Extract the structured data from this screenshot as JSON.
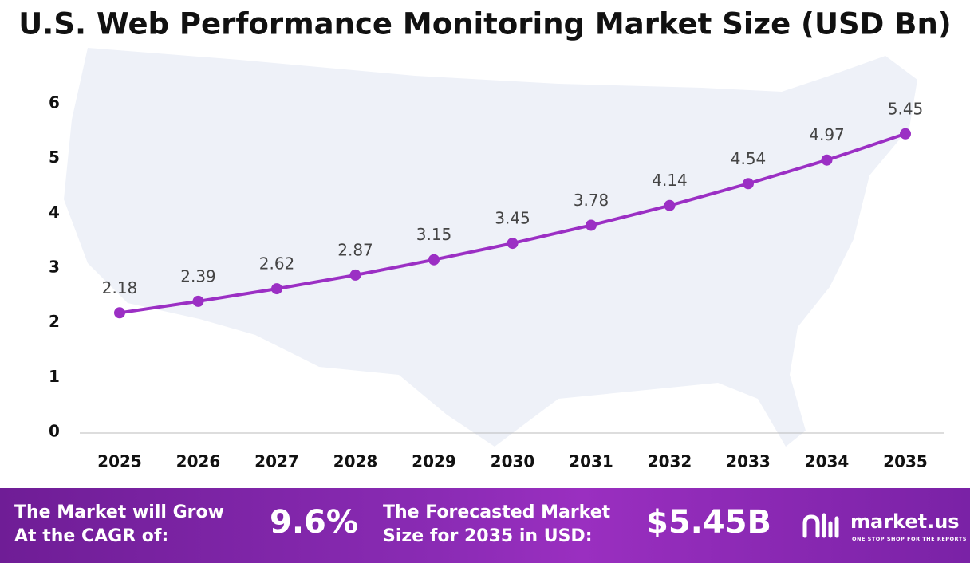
{
  "chart_data": {
    "type": "line",
    "title": "U.S. Web Performance Monitoring Market Size (USD Bn)",
    "categories": [
      "2025",
      "2026",
      "2027",
      "2028",
      "2029",
      "2030",
      "2031",
      "2032",
      "2033",
      "2034",
      "2035"
    ],
    "values": [
      2.18,
      2.39,
      2.62,
      2.87,
      3.15,
      3.45,
      3.78,
      4.14,
      4.54,
      4.97,
      5.45
    ],
    "color": "#9b2fc4",
    "ylim": [
      0,
      6
    ],
    "yticks": [
      0,
      1,
      2,
      3,
      4,
      5,
      6
    ],
    "grid": false
  },
  "banner": {
    "cagr_label": [
      "The Market will Grow",
      "At the CAGR of:"
    ],
    "cagr_value": "9.6%",
    "forecast_label": [
      "The Forecasted Market",
      "Size for 2035 in USD:"
    ],
    "forecast_value": "$5.45B",
    "logo": "market.us",
    "tagline": "ONE STOP SHOP FOR THE REPORTS"
  }
}
